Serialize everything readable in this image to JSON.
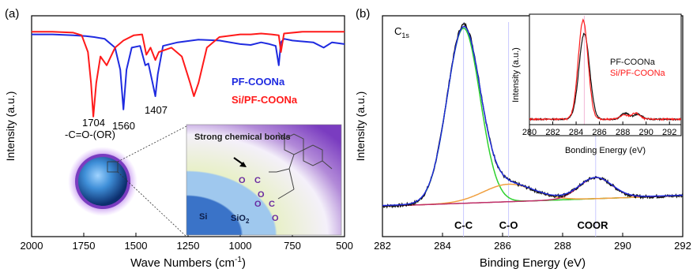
{
  "colors": {
    "blue": "#1f2be0",
    "red": "#ff1a1a",
    "black": "#111111",
    "green": "#2ed12e",
    "orange": "#f0a040",
    "magenta": "#c0306a",
    "brown": "#8a3f2a",
    "inset_ref": "#f2b8d6",
    "ref_line": "#c9c9ff"
  },
  "chart_data": [
    {
      "type": "line",
      "panel_label": "(a)",
      "xlabel": "Wave Numbers (cm",
      "xlabel_sup": "-1",
      "xlabel_end": ")",
      "ylabel": "Intensity (a.u.)",
      "xlim": [
        2000,
        500
      ],
      "x_ticks": [
        2000,
        1750,
        1500,
        1250,
        1000,
        750,
        500
      ],
      "x_tick_labels": [
        "2000",
        "1750",
        "1500",
        "1250",
        "1000",
        "750",
        "500"
      ],
      "legend": [
        {
          "label": "PF-COONa",
          "color": "#1f2be0"
        },
        {
          "label": "Si/PF-COONa",
          "color": "#ff1a1a"
        }
      ],
      "annotations": [
        {
          "text": "1704",
          "x": 1704
        },
        {
          "text": "-C=O-(OR)",
          "x": 1704
        },
        {
          "text": "1560",
          "x": 1560
        },
        {
          "text": "1407",
          "x": 1407
        }
      ],
      "series": [
        {
          "name": "PF-COONa",
          "x": [
            2000,
            1900,
            1800,
            1740,
            1700,
            1650,
            1600,
            1575,
            1560,
            1545,
            1520,
            1480,
            1455,
            1440,
            1420,
            1407,
            1395,
            1370,
            1300,
            1200,
            1100,
            1000,
            950,
            900,
            860,
            830,
            815,
            805,
            790,
            750,
            650,
            600,
            560,
            500
          ],
          "y": [
            0.95,
            0.95,
            0.94,
            0.93,
            0.92,
            0.9,
            0.8,
            0.55,
            0.1,
            0.55,
            0.8,
            0.82,
            0.6,
            0.62,
            0.4,
            0.25,
            0.5,
            0.82,
            0.86,
            0.89,
            0.88,
            0.84,
            0.83,
            0.86,
            0.84,
            0.82,
            0.6,
            0.86,
            0.9,
            0.88,
            0.86,
            0.8,
            0.86,
            0.84
          ]
        },
        {
          "name": "Si/PF-COONa",
          "x": [
            2000,
            1900,
            1800,
            1760,
            1730,
            1715,
            1704,
            1690,
            1670,
            1640,
            1600,
            1560,
            1510,
            1470,
            1450,
            1430,
            1407,
            1390,
            1330,
            1280,
            1240,
            1222,
            1200,
            1160,
            1100,
            1000,
            950,
            900,
            850,
            815,
            805,
            790,
            700,
            600,
            500
          ],
          "y": [
            0.98,
            0.98,
            0.97,
            0.94,
            0.75,
            0.4,
            0.02,
            0.4,
            0.7,
            0.6,
            0.8,
            0.88,
            0.94,
            0.95,
            0.72,
            0.8,
            0.66,
            0.75,
            0.8,
            0.7,
            0.4,
            0.25,
            0.4,
            0.8,
            0.92,
            0.95,
            0.95,
            0.96,
            0.95,
            0.94,
            0.75,
            0.96,
            0.98,
            0.98,
            0.98
          ]
        }
      ]
    },
    {
      "type": "line",
      "panel_label": "(b)",
      "title": "C",
      "title_sub": "1s",
      "xlabel": "Binding Energy (eV)",
      "ylabel": "Intensity (a.u.)",
      "xlim": [
        282,
        292
      ],
      "x_ticks": [
        282,
        284,
        286,
        288,
        290,
        292
      ],
      "x_tick_labels": [
        "282",
        "284",
        "286",
        "288",
        "290",
        "292"
      ],
      "peak_labels": [
        {
          "text": "C-C",
          "x": 284.7
        },
        {
          "text": "C-O",
          "x": 286.2
        },
        {
          "text": "COOR",
          "x": 289.0
        }
      ],
      "series": [
        {
          "name": "Experimental",
          "type": "gauss_sum",
          "color": "#111111",
          "noise": true
        },
        {
          "name": "Fit envelope",
          "type": "gauss_sum",
          "color": "#1f2be0"
        },
        {
          "name": "C-C component",
          "center": 284.7,
          "height": 1.0,
          "sigma": 0.55,
          "color": "#2ed12e"
        },
        {
          "name": "C-O component",
          "center": 286.2,
          "height": 0.1,
          "sigma": 0.85,
          "color": "#f0a040"
        },
        {
          "name": "COOR component",
          "center": 289.1,
          "height": 0.12,
          "sigma": 0.55,
          "color": "#c0306a"
        }
      ],
      "baseline": 0.03
    },
    {
      "type": "line",
      "inset": true,
      "xlabel": "Bonding Energy (eV)",
      "ylabel": "Intensity (a.u.)",
      "xlim": [
        280,
        293
      ],
      "x_ticks": [
        280,
        282,
        284,
        286,
        288,
        290,
        292
      ],
      "x_tick_labels": [
        "280",
        "282",
        "284",
        "286",
        "288",
        "290",
        "292"
      ],
      "legend": [
        {
          "label": "PF-COONa",
          "color": "#111111"
        },
        {
          "label": "Si/PF-COONa",
          "color": "#ff1a1a"
        }
      ],
      "series": [
        {
          "name": "PF-COONa",
          "center": 284.7,
          "height": 0.85,
          "sigma": 0.45,
          "minor": [
            {
              "center": 288.2,
              "height": 0.06
            },
            {
              "center": 289.3,
              "height": 0.05
            }
          ],
          "color": "#111111"
        },
        {
          "name": "Si/PF-COONa",
          "center": 284.6,
          "height": 0.98,
          "sigma": 0.42,
          "minor": [
            {
              "center": 288.1,
              "height": 0.04
            },
            {
              "center": 289.1,
              "height": 0.06
            }
          ],
          "color": "#ff1a1a"
        }
      ]
    }
  ],
  "schematic": {
    "strong_bonds_label": "Strong chemical bonds",
    "si_label": "Si",
    "sio2_label": "SiO",
    "sio2_sub": "2",
    "o_label": "O",
    "c_label": "C"
  }
}
